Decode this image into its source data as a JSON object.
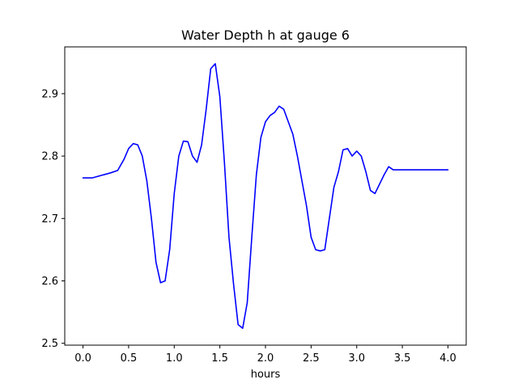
{
  "chart_data": {
    "type": "line",
    "title": "Water Depth h at gauge 6",
    "xlabel": "hours",
    "ylabel": "",
    "xlim": [
      -0.2,
      4.2
    ],
    "ylim": [
      2.497,
      2.975
    ],
    "xticks": [
      0.0,
      0.5,
      1.0,
      1.5,
      2.0,
      2.5,
      3.0,
      3.5,
      4.0
    ],
    "xtick_labels": [
      "0.0",
      "0.5",
      "1.0",
      "1.5",
      "2.0",
      "2.5",
      "3.0",
      "3.5",
      "4.0"
    ],
    "yticks": [
      2.5,
      2.6,
      2.7,
      2.8,
      2.9
    ],
    "ytick_labels": [
      "2.5",
      "2.6",
      "2.7",
      "2.8",
      "2.9"
    ],
    "grid": false,
    "legend": "none",
    "color": "#0000ff",
    "series": [
      {
        "x": [
          0.0,
          0.1,
          0.2,
          0.3,
          0.38,
          0.45,
          0.5,
          0.55,
          0.6,
          0.65,
          0.7,
          0.75,
          0.8,
          0.85,
          0.9,
          0.95,
          1.0,
          1.05,
          1.1,
          1.15,
          1.2,
          1.25,
          1.3,
          1.35,
          1.4,
          1.45,
          1.5,
          1.55,
          1.6,
          1.65,
          1.7,
          1.75,
          1.8,
          1.85,
          1.9,
          1.95,
          2.0,
          2.05,
          2.1,
          2.15,
          2.2,
          2.25,
          2.3,
          2.35,
          2.4,
          2.45,
          2.5,
          2.55,
          2.6,
          2.65,
          2.7,
          2.75,
          2.8,
          2.85,
          2.9,
          2.95,
          3.0,
          3.05,
          3.1,
          3.15,
          3.2,
          3.25,
          3.3,
          3.35,
          3.4,
          3.45,
          3.5,
          3.55,
          3.6,
          3.65,
          3.7,
          3.75,
          3.8,
          3.85,
          3.9,
          3.95,
          4.0
        ],
        "y": [
          2.765,
          2.765,
          2.769,
          2.773,
          2.777,
          2.795,
          2.812,
          2.82,
          2.818,
          2.8,
          2.76,
          2.7,
          2.63,
          2.597,
          2.6,
          2.65,
          2.74,
          2.8,
          2.824,
          2.823,
          2.8,
          2.79,
          2.818,
          2.875,
          2.94,
          2.948,
          2.895,
          2.79,
          2.67,
          2.595,
          2.53,
          2.524,
          2.565,
          2.67,
          2.77,
          2.83,
          2.855,
          2.865,
          2.87,
          2.88,
          2.875,
          2.855,
          2.835,
          2.8,
          2.76,
          2.72,
          2.67,
          2.65,
          2.648,
          2.65,
          2.7,
          2.75,
          2.775,
          2.81,
          2.812,
          2.8,
          2.808,
          2.8,
          2.775,
          2.745,
          2.74,
          2.755,
          2.77,
          2.783,
          2.778,
          2.778,
          2.778,
          2.778,
          2.778,
          2.778,
          2.778,
          2.778,
          2.778,
          2.778,
          2.778,
          2.778,
          2.778
        ]
      }
    ]
  }
}
